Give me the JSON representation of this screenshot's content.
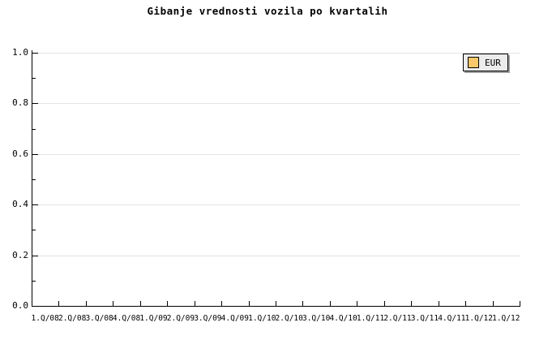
{
  "title": "Gibanje vrednosti vozila po kvartalih",
  "legend": {
    "label": "EUR",
    "swatch_color": "#F9C86A"
  },
  "colors": {
    "background": "#ffffff",
    "axis": "#000000",
    "grid": "#e4e4e4",
    "legend_bg": "#ececec",
    "legend_border": "#000000",
    "legend_shadow": "#a0a0a0",
    "text": "#000000"
  },
  "y_axis": {
    "tick_labels": [
      "1.0",
      "0.8",
      "0.6",
      "0.4",
      "0.2",
      "0.0"
    ],
    "minor_tick_values": [
      0.1,
      0.3,
      0.5,
      0.7,
      0.9
    ]
  },
  "chart_data": {
    "type": "line",
    "title": "Gibanje vrednosti vozila po kvartalih",
    "categories": [
      "1.Q/08",
      "2.Q/08",
      "3.Q/08",
      "4.Q/08",
      "1.Q/09",
      "2.Q/09",
      "3.Q/09",
      "4.Q/09",
      "1.Q/10",
      "2.Q/10",
      "3.Q/10",
      "4.Q/10",
      "1.Q/11",
      "2.Q/11",
      "3.Q/11",
      "4.Q/11",
      "1.Q/12",
      "1.Q/12"
    ],
    "series": [
      {
        "name": "EUR",
        "values": []
      }
    ],
    "xlabel": "",
    "ylabel": "",
    "ylim": [
      0.0,
      1.0
    ],
    "ytick_step": 0.2,
    "grid": true,
    "legend_position": "top-right"
  }
}
